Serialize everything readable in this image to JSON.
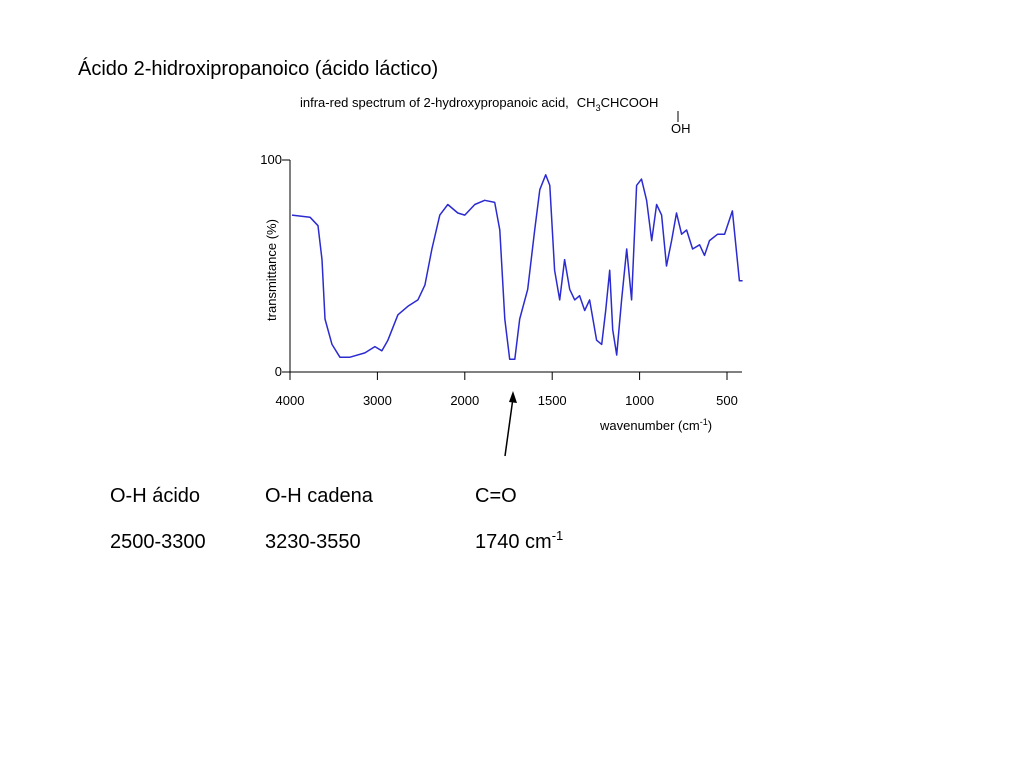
{
  "heading": "Ácido 2-hidroxipropanoico (ácido láctico)",
  "chart_data": {
    "type": "line",
    "title": "infra-red spectrum of 2-hydroxypropanoic acid,",
    "formula": [
      "CH",
      "3",
      "CHCOOH"
    ],
    "formula_branch": "OH",
    "ylabel": "transmittance (%)",
    "xlabel": [
      "wavenumber (cm",
      "-1",
      ")"
    ],
    "color": "#2b2bd0",
    "xlim": [
      4000,
      400
    ],
    "ylim": [
      0,
      100
    ],
    "xticks": [
      4000,
      3000,
      2000,
      1500,
      1000,
      500
    ],
    "yticks": [
      0,
      100
    ],
    "x": [
      3977,
      3771,
      3680,
      3634,
      3600,
      3520,
      3429,
      3314,
      3143,
      3029,
      2949,
      2880,
      2766,
      2651,
      2537,
      2457,
      2377,
      2286,
      2194,
      2080,
      2000,
      1943,
      1886,
      1829,
      1800,
      1771,
      1743,
      1714,
      1686,
      1640,
      1600,
      1571,
      1537,
      1514,
      1486,
      1457,
      1429,
      1400,
      1371,
      1343,
      1314,
      1286,
      1246,
      1217,
      1194,
      1171,
      1154,
      1131,
      1103,
      1074,
      1046,
      1017,
      989,
      960,
      931,
      903,
      874,
      846,
      817,
      789,
      760,
      731,
      697,
      657,
      629,
      600,
      554,
      514,
      469,
      429,
      411
    ],
    "values": [
      74,
      73,
      69,
      53,
      25,
      13,
      7,
      7,
      9,
      12,
      10,
      15,
      27,
      31,
      34,
      41,
      58,
      74,
      79,
      75,
      74,
      79,
      81,
      80,
      67,
      25,
      6,
      6,
      25,
      39,
      67,
      86,
      93,
      88,
      48,
      34,
      53,
      39,
      34,
      36,
      29,
      34,
      15,
      13,
      29,
      48,
      20,
      8,
      34,
      58,
      34,
      88,
      91,
      81,
      62,
      79,
      74,
      50,
      62,
      75,
      65,
      67,
      58,
      60,
      55,
      62,
      65,
      65,
      76,
      43,
      43
    ]
  },
  "table": {
    "headers": [
      "O-H ácido",
      "O-H cadena",
      "C=O"
    ],
    "ranges": [
      "2500-3300",
      "3230-3550"
    ],
    "carbonyl": [
      "1740 cm",
      "-1"
    ]
  }
}
